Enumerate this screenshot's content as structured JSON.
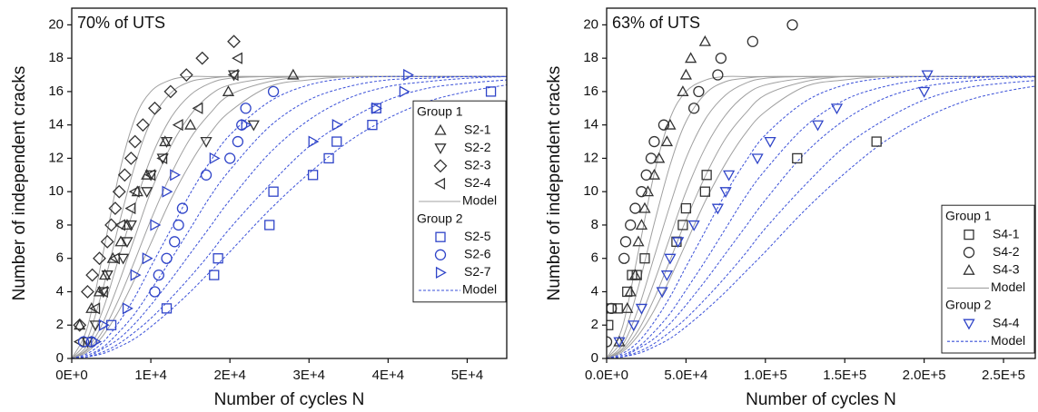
{
  "chart_data": [
    {
      "type": "scatter",
      "annotation": "70% of UTS",
      "xlabel": "Number of cycles N",
      "ylabel": "Number of independent cracks",
      "xlim": [
        0,
        55000
      ],
      "xticks": [
        {
          "value": 0,
          "label": "0E+0"
        },
        {
          "value": 10000,
          "label": "1E+4"
        },
        {
          "value": 20000,
          "label": "2E+4"
        },
        {
          "value": 30000,
          "label": "3E+4"
        },
        {
          "value": 40000,
          "label": "4E+4"
        },
        {
          "value": 50000,
          "label": "5E+4"
        }
      ],
      "ylim": [
        0,
        21
      ],
      "yticks": [
        0,
        2,
        4,
        6,
        8,
        10,
        12,
        14,
        16,
        18,
        20
      ],
      "legend": "center right",
      "series": [
        {
          "name": "S2-1",
          "group": "Group 1",
          "marker": "triangle-up",
          "color": "#333333",
          "x": [
            1000,
            2500,
            3500,
            4200,
            5200,
            6200,
            7000,
            8300,
            9500,
            11800,
            15000,
            19800,
            28000
          ],
          "values": [
            2,
            3,
            4,
            5,
            6,
            7,
            8,
            10,
            11,
            13,
            14,
            16,
            17
          ]
        },
        {
          "name": "S2-2",
          "group": "Group 1",
          "marker": "triangle-down",
          "color": "#333333",
          "x": [
            2000,
            3000,
            4000,
            4500,
            6500,
            7000,
            7500,
            9500,
            10000,
            11500,
            12000,
            17000,
            20500,
            23000
          ],
          "values": [
            1,
            2,
            4,
            5,
            6,
            7,
            8,
            10,
            11,
            12,
            13,
            13,
            17,
            14
          ]
        },
        {
          "name": "S2-3",
          "group": "Group 1",
          "marker": "diamond",
          "color": "#333333",
          "x": [
            1000,
            2000,
            2600,
            3500,
            4500,
            5000,
            5500,
            6000,
            6700,
            7500,
            8000,
            9000,
            10500,
            12500,
            14500,
            16500,
            20500
          ],
          "values": [
            2,
            4,
            5,
            6,
            7,
            8,
            9,
            10,
            11,
            12,
            13,
            14,
            15,
            16,
            17,
            18,
            19
          ]
        },
        {
          "name": "S2-4",
          "group": "Group 1",
          "marker": "triangle-left",
          "color": "#333333",
          "x": [
            1000,
            3000,
            4000,
            5500,
            6200,
            7500,
            8000,
            10000,
            11500,
            13500,
            16000,
            20500,
            21000
          ],
          "values": [
            1,
            3,
            4,
            6,
            8,
            9,
            10,
            11,
            12,
            14,
            15,
            17,
            18
          ]
        },
        {
          "name": "S2-5",
          "group": "Group 2",
          "marker": "square",
          "color": "#2f44c8",
          "x": [
            5000,
            12000,
            18000,
            18500,
            25000,
            25500,
            30500,
            32500,
            33500,
            38000,
            38500,
            53000
          ],
          "values": [
            2,
            3,
            5,
            6,
            8,
            10,
            11,
            12,
            13,
            14,
            15,
            16
          ]
        },
        {
          "name": "S2-6",
          "group": "Group 2",
          "marker": "circle",
          "color": "#2f44c8",
          "x": [
            1500,
            2500,
            10500,
            11000,
            12000,
            13000,
            13500,
            14000,
            17000,
            20000,
            21000,
            21500,
            22000,
            25500
          ],
          "values": [
            1,
            1,
            4,
            5,
            6,
            7,
            8,
            9,
            11,
            12,
            13,
            14,
            15,
            16
          ]
        },
        {
          "name": "S2-7",
          "group": "Group 2",
          "marker": "triangle-right",
          "color": "#2f44c8",
          "x": [
            3000,
            4000,
            7000,
            8000,
            9500,
            10500,
            12000,
            13000,
            18000,
            22000,
            30500,
            33500,
            38500,
            42000,
            42500
          ],
          "values": [
            1,
            2,
            3,
            5,
            6,
            8,
            10,
            11,
            12,
            14,
            13,
            14,
            15,
            16,
            17
          ]
        }
      ],
      "models": [
        {
          "name": "Model",
          "group": "Group 1",
          "color": "#a0a0a0",
          "style": "solid",
          "x": [
            0,
            2000,
            4000,
            6000,
            8000,
            10000,
            12500,
            15000,
            17500,
            20000,
            25000,
            30000,
            35000,
            40000,
            45000,
            50000,
            55000
          ],
          "curves": [
            [
              0,
              1.9,
              6.4,
              11.1,
              14.4,
              16.0,
              16.7,
              16.9,
              16.9,
              16.9,
              16.9,
              16.9,
              16.9,
              16.9,
              16.9,
              16.9,
              16.9
            ],
            [
              0,
              1.2,
              4.3,
              8.1,
              11.6,
              14.2,
              15.9,
              16.6,
              16.8,
              16.9,
              16.9,
              16.9,
              16.9,
              16.9,
              16.9,
              16.9,
              16.9
            ],
            [
              0,
              0.8,
              3.0,
              6.1,
              9.2,
              12.0,
              14.4,
              15.8,
              16.5,
              16.8,
              16.9,
              16.9,
              16.9,
              16.9,
              16.9,
              16.9,
              16.9
            ],
            [
              0,
              0.6,
              2.2,
              4.6,
              7.3,
              10.0,
              12.7,
              14.6,
              15.8,
              16.4,
              16.8,
              16.9,
              16.9,
              16.9,
              16.9,
              16.9,
              16.9
            ],
            [
              0,
              0.5,
              1.7,
              3.6,
              5.9,
              8.3,
              11.0,
              13.2,
              14.7,
              15.8,
              16.6,
              16.9,
              16.9,
              16.9,
              16.9,
              16.9,
              16.9
            ],
            [
              0,
              0.4,
              1.4,
              2.9,
              4.8,
              6.9,
              9.5,
              11.7,
              13.5,
              14.8,
              16.3,
              16.7,
              16.9,
              16.9,
              16.9,
              16.9,
              16.9
            ]
          ]
        },
        {
          "name": "Model",
          "group": "Group 2",
          "color": "#3a50d8",
          "style": "dashed",
          "x": [
            0,
            2000,
            4000,
            6000,
            8000,
            10000,
            12500,
            15000,
            17500,
            20000,
            25000,
            30000,
            35000,
            40000,
            45000,
            50000,
            55000
          ],
          "curves": [
            [
              0,
              0.3,
              1.0,
              2.2,
              3.7,
              5.5,
              7.7,
              9.9,
              11.8,
              13.4,
              15.4,
              16.4,
              16.8,
              16.9,
              16.9,
              16.9,
              16.9
            ],
            [
              0,
              0.2,
              0.7,
              1.6,
              2.7,
              4.1,
              5.9,
              7.8,
              9.7,
              11.3,
              13.9,
              15.5,
              16.3,
              16.7,
              16.8,
              16.9,
              16.9
            ],
            [
              0,
              0.1,
              0.6,
              1.2,
              2.1,
              3.2,
              4.7,
              6.3,
              7.9,
              9.5,
              12.3,
              14.3,
              15.6,
              16.3,
              16.6,
              16.8,
              16.9
            ],
            [
              0,
              0.1,
              0.4,
              0.9,
              1.6,
              2.4,
              3.6,
              4.9,
              6.3,
              7.8,
              10.4,
              12.7,
              14.3,
              15.5,
              16.2,
              16.5,
              16.7
            ],
            [
              0,
              0.1,
              0.3,
              0.7,
              1.2,
              1.9,
              2.9,
              4.0,
              5.2,
              6.4,
              8.9,
              11.1,
              13.0,
              14.4,
              15.4,
              16.0,
              16.4
            ]
          ]
        }
      ]
    },
    {
      "type": "scatter",
      "annotation": "63% of UTS",
      "xlabel": "Number of cycles N",
      "ylabel": "Number of independent cracks",
      "xlim": [
        0,
        270000
      ],
      "xticks": [
        {
          "value": 0,
          "label": "0.0E+0"
        },
        {
          "value": 50000,
          "label": "5.0E+4"
        },
        {
          "value": 100000,
          "label": "1.0E+5"
        },
        {
          "value": 150000,
          "label": "1.5E+5"
        },
        {
          "value": 200000,
          "label": "2.0E+5"
        },
        {
          "value": 250000,
          "label": "2.5E+5"
        }
      ],
      "ylim": [
        0,
        21
      ],
      "yticks": [
        0,
        2,
        4,
        6,
        8,
        10,
        12,
        14,
        16,
        18,
        20
      ],
      "legend": "lower right",
      "series": [
        {
          "name": "S4-1",
          "group": "Group 1",
          "marker": "square",
          "color": "#333333",
          "x": [
            1000,
            3000,
            7000,
            13000,
            16000,
            19000,
            24000,
            44000,
            48000,
            50000,
            62000,
            63000,
            120000,
            170000
          ],
          "values": [
            2,
            3,
            3,
            4,
            5,
            5,
            6,
            7,
            8,
            9,
            10,
            11,
            12,
            13
          ]
        },
        {
          "name": "S4-2",
          "group": "Group 1",
          "marker": "circle",
          "color": "#333333",
          "x": [
            0,
            3000,
            11000,
            12000,
            15000,
            18000,
            22000,
            25000,
            28000,
            30000,
            36000,
            55000,
            58000,
            70000,
            72000,
            92000,
            117000
          ],
          "values": [
            1,
            3,
            6,
            7,
            8,
            9,
            10,
            11,
            12,
            13,
            14,
            15,
            16,
            17,
            18,
            19,
            20
          ]
        },
        {
          "name": "S4-3",
          "group": "Group 1",
          "marker": "triangle-up",
          "color": "#333333",
          "x": [
            8000,
            13000,
            15000,
            18000,
            20000,
            22000,
            24000,
            26000,
            30000,
            33000,
            38000,
            40000,
            48000,
            50000,
            53000,
            62000
          ],
          "values": [
            1,
            3,
            4,
            5,
            7,
            8,
            9,
            10,
            11,
            12,
            13,
            14,
            16,
            17,
            18,
            19
          ]
        },
        {
          "name": "S4-4",
          "group": "Group 2",
          "marker": "triangle-down",
          "color": "#2f44c8",
          "x": [
            8000,
            17000,
            22000,
            35000,
            38000,
            40000,
            45000,
            55000,
            70000,
            75000,
            77000,
            95000,
            103000,
            133000,
            145000,
            200000,
            202000
          ],
          "values": [
            1,
            2,
            3,
            4,
            5,
            6,
            7,
            8,
            9,
            10,
            11,
            12,
            13,
            14,
            15,
            16,
            17
          ]
        }
      ],
      "models": [
        {
          "name": "Model",
          "group": "Group 1",
          "color": "#a0a0a0",
          "style": "solid",
          "x": [
            0,
            10000,
            20000,
            30000,
            40000,
            50000,
            62500,
            75000,
            87500,
            100000,
            125000,
            150000,
            175000,
            200000,
            225000,
            250000,
            275000
          ],
          "curves": [
            [
              0,
              1.9,
              6.4,
              11.1,
              14.4,
              16.0,
              16.7,
              16.9,
              16.9,
              16.9,
              16.9,
              16.9,
              16.9,
              16.9,
              16.9,
              16.9,
              16.9
            ],
            [
              0,
              1.2,
              4.3,
              8.1,
              11.6,
              14.2,
              15.9,
              16.6,
              16.8,
              16.9,
              16.9,
              16.9,
              16.9,
              16.9,
              16.9,
              16.9,
              16.9
            ],
            [
              0,
              0.8,
              3.0,
              6.1,
              9.2,
              12.0,
              14.4,
              15.8,
              16.5,
              16.8,
              16.9,
              16.9,
              16.9,
              16.9,
              16.9,
              16.9,
              16.9
            ],
            [
              0,
              0.6,
              2.2,
              4.6,
              7.3,
              10.0,
              12.7,
              14.6,
              15.8,
              16.4,
              16.8,
              16.9,
              16.9,
              16.9,
              16.9,
              16.9,
              16.9
            ],
            [
              0,
              0.5,
              1.7,
              3.6,
              5.9,
              8.3,
              11.0,
              13.2,
              14.7,
              15.8,
              16.6,
              16.9,
              16.9,
              16.9,
              16.9,
              16.9,
              16.9
            ],
            [
              0,
              0.4,
              1.4,
              2.9,
              4.8,
              6.9,
              9.5,
              11.7,
              13.5,
              14.8,
              16.3,
              16.7,
              16.9,
              16.9,
              16.9,
              16.9,
              16.9
            ]
          ]
        },
        {
          "name": "Model",
          "group": "Group 2",
          "color": "#3a50d8",
          "style": "dashed",
          "x": [
            0,
            10000,
            20000,
            30000,
            40000,
            50000,
            62500,
            75000,
            87500,
            100000,
            125000,
            150000,
            175000,
            200000,
            225000,
            250000,
            275000
          ],
          "curves": [
            [
              0,
              0.3,
              1.0,
              2.2,
              3.7,
              5.5,
              7.7,
              9.9,
              11.8,
              13.4,
              15.4,
              16.4,
              16.8,
              16.9,
              16.9,
              16.9,
              16.9
            ],
            [
              0,
              0.2,
              0.7,
              1.6,
              2.7,
              4.1,
              5.9,
              7.8,
              9.7,
              11.3,
              13.9,
              15.5,
              16.3,
              16.7,
              16.8,
              16.9,
              16.9
            ],
            [
              0,
              0.1,
              0.6,
              1.2,
              2.1,
              3.2,
              4.7,
              6.3,
              7.9,
              9.5,
              12.3,
              14.3,
              15.6,
              16.3,
              16.6,
              16.8,
              16.9
            ],
            [
              0,
              0.1,
              0.4,
              0.9,
              1.6,
              2.4,
              3.6,
              4.9,
              6.3,
              7.8,
              10.4,
              12.7,
              14.3,
              15.5,
              16.2,
              16.5,
              16.7
            ],
            [
              0,
              0.1,
              0.3,
              0.7,
              1.2,
              1.9,
              2.9,
              4.0,
              5.2,
              6.4,
              8.9,
              11.1,
              13.0,
              14.4,
              15.4,
              16.0,
              16.4
            ]
          ]
        }
      ]
    }
  ]
}
